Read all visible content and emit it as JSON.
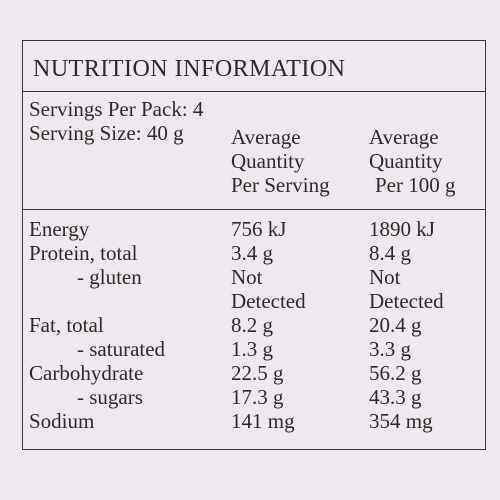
{
  "title": "NUTRITION INFORMATION",
  "servings_per_pack": "Servings Per Pack: 4",
  "serving_size": "Serving Size: 40 g",
  "columns": {
    "per_serving": [
      "Average",
      "Quantity",
      "Per Serving"
    ],
    "per_100g": [
      "Average",
      "Quantity",
      "Per 100 g"
    ]
  },
  "rows": [
    {
      "label": "Energy",
      "per_serving": "756 kJ",
      "per_100g": "1890 kJ"
    },
    {
      "label": "Protein, total",
      "per_serving": "3.4 g",
      "per_100g": "8.4 g"
    },
    {
      "label": "- gluten",
      "per_serving": [
        "Not",
        "Detected"
      ],
      "per_100g": [
        "Not",
        "Detected"
      ]
    },
    {
      "label": "Fat, total",
      "per_serving": "8.2 g",
      "per_100g": "20.4 g"
    },
    {
      "label": "- saturated",
      "per_serving": "1.3 g",
      "per_100g": "3.3 g"
    },
    {
      "label": "Carbohydrate",
      "per_serving": "22.5 g",
      "per_100g": "56.2 g"
    },
    {
      "label": "- sugars",
      "per_serving": "17.3 g",
      "per_100g": "43.3 g"
    },
    {
      "label": "Sodium",
      "per_serving": "141 mg",
      "per_100g": "354 mg"
    }
  ]
}
